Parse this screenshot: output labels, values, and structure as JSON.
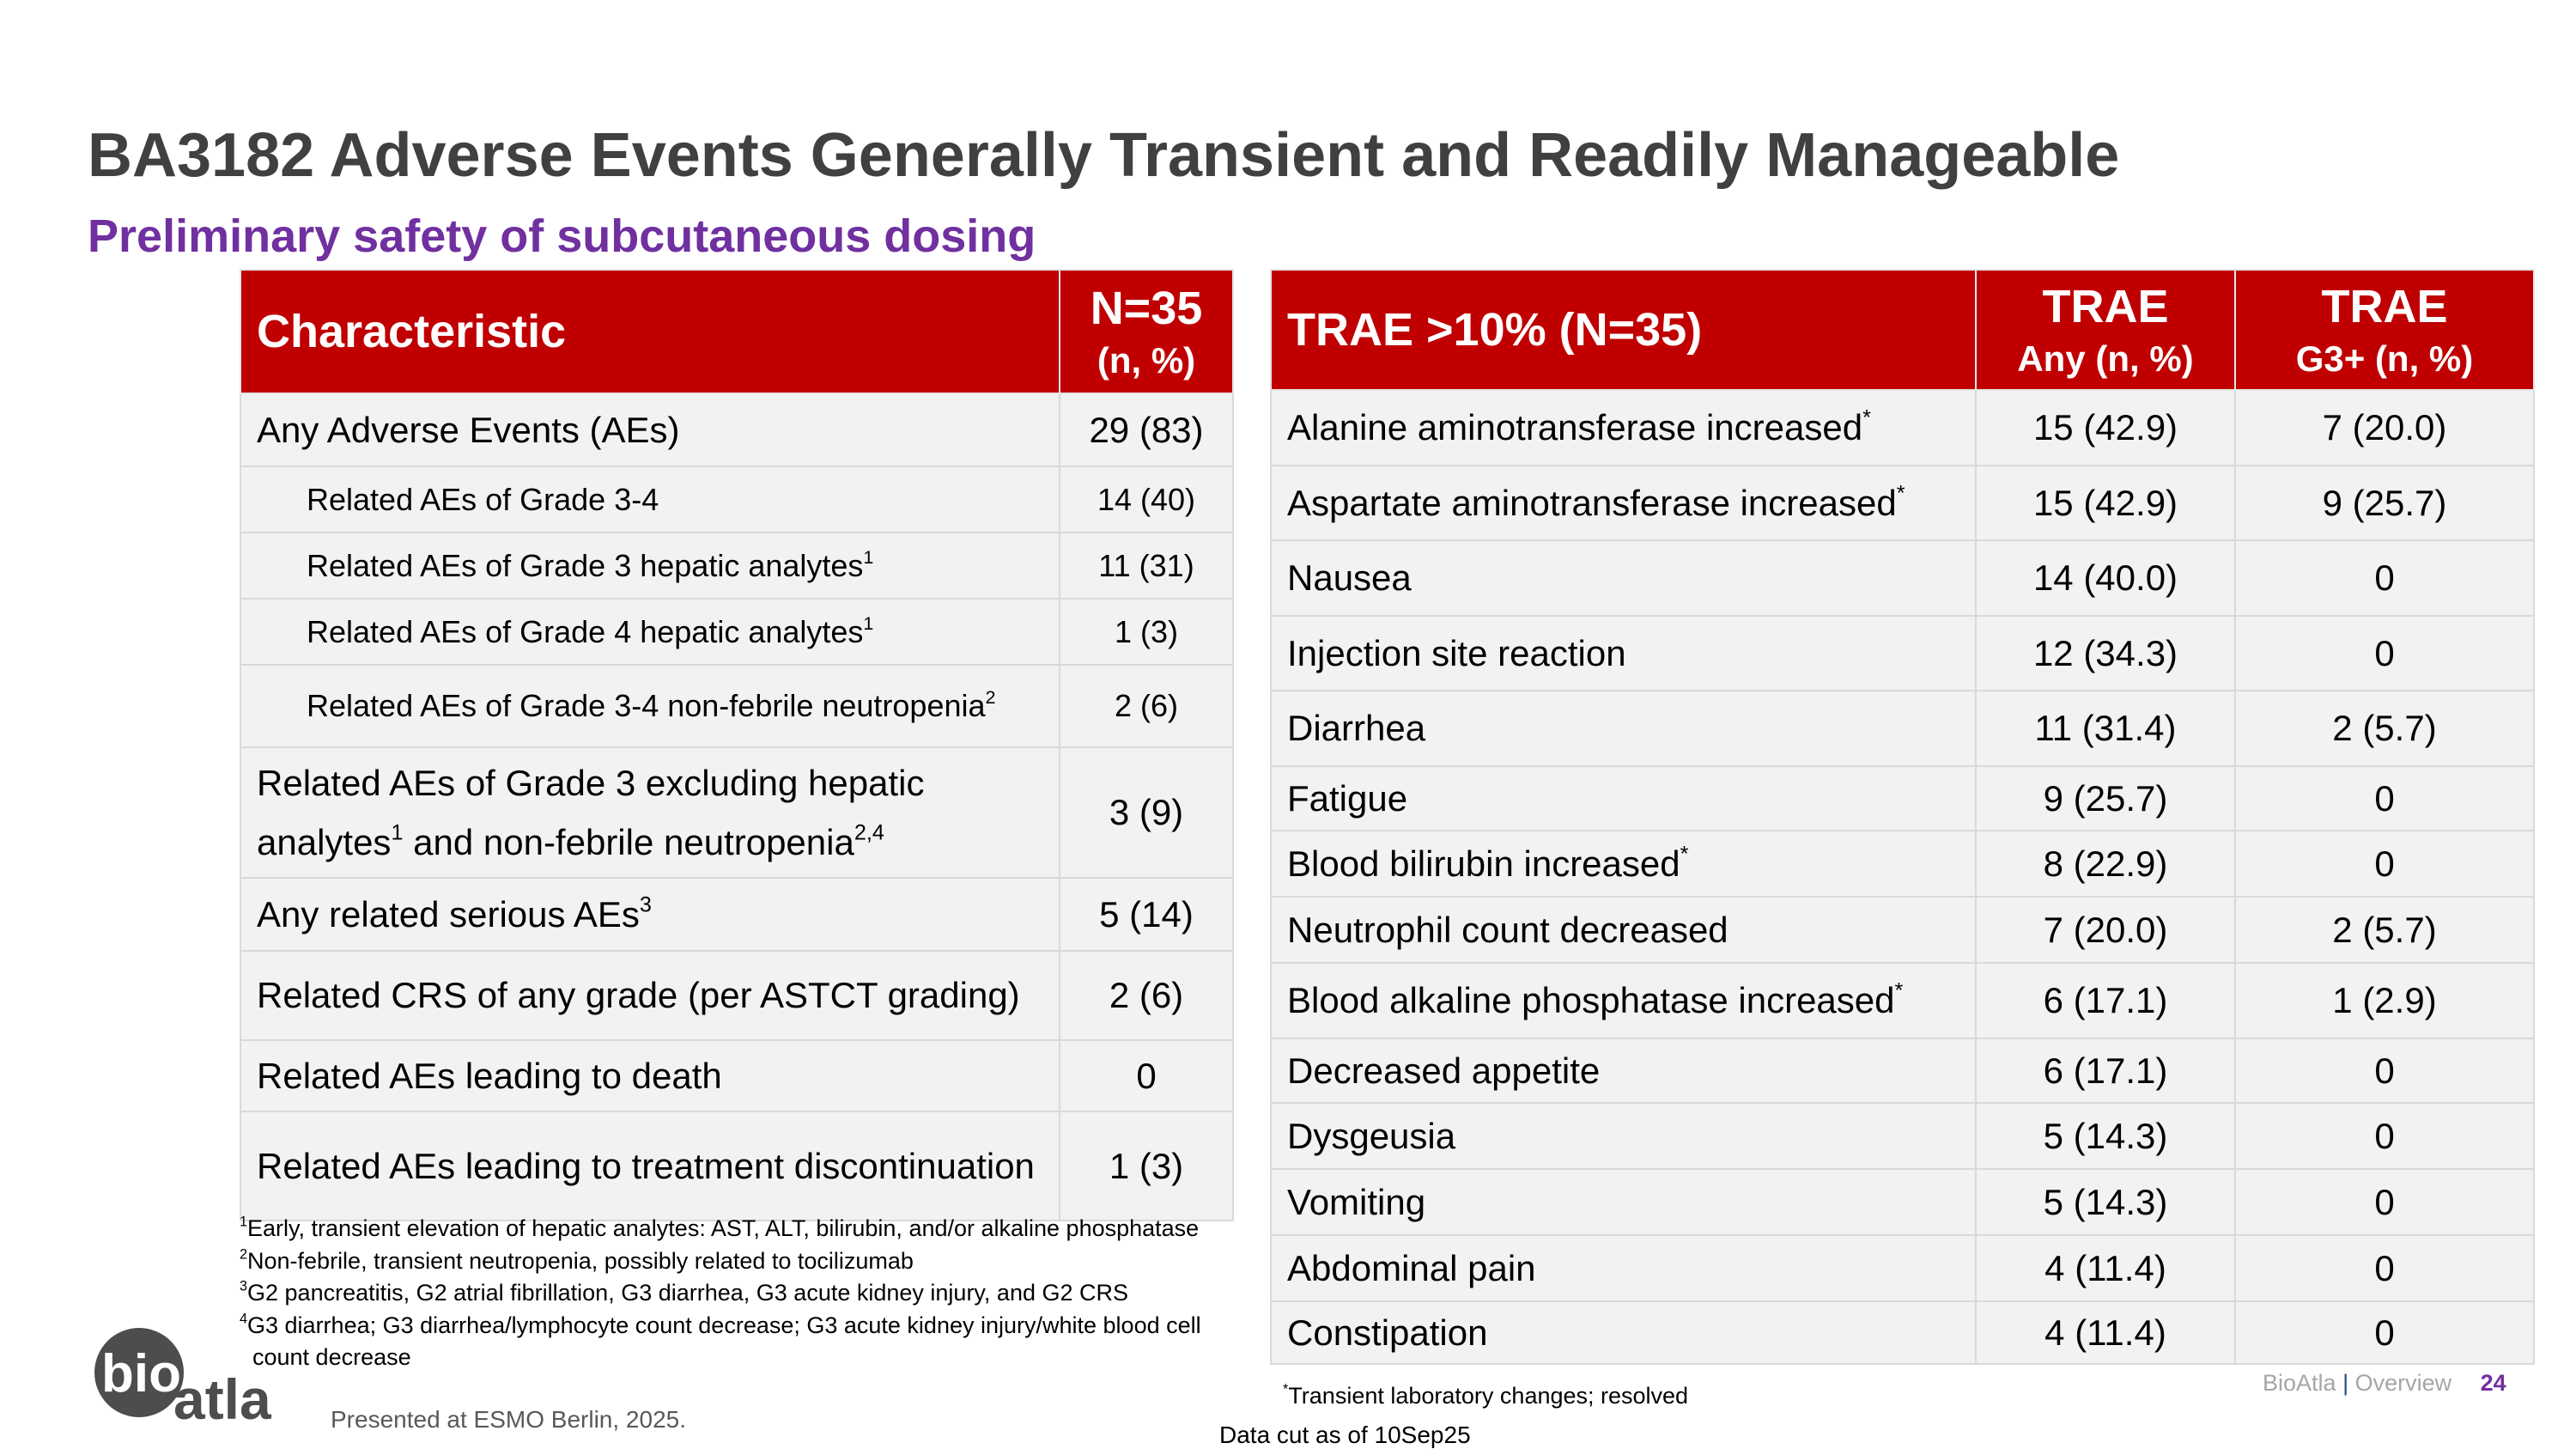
{
  "title": "BA3182 Adverse Events Generally Transient and Readily Manageable",
  "subtitle": "Preliminary safety of subcutaneous dosing",
  "colors": {
    "header_red": "#c00000",
    "accent_purple": "#7030a0",
    "title_gray": "#404040",
    "row_bg": "#f2f2f2"
  },
  "left_table": {
    "header": {
      "col1": "Characteristic",
      "col2_main": "N=35",
      "col2_sub": "(n, %)"
    },
    "rows": [
      {
        "label": "Any Adverse Events (AEs)",
        "value": "29 (83)",
        "indent": false
      },
      {
        "label": "Related AEs of Grade 3-4",
        "value": "14 (40)",
        "indent": true
      },
      {
        "label": "Related AEs of Grade 3 hepatic analytes",
        "sup": "1",
        "value": "11 (31)",
        "indent": true
      },
      {
        "label": "Related AEs of Grade 4 hepatic analytes",
        "sup": "1",
        "value": "1 (3)",
        "indent": true
      },
      {
        "label": "Related AEs of Grade 3-4 non-febrile neutropenia",
        "sup": "2",
        "value": "2 (6)",
        "indent": true
      },
      {
        "label": "Related AEs of Grade 3 excluding hepatic analytes",
        "sup": "1",
        "label2": " and non-febrile neutropenia",
        "sup2": "2,4",
        "value": "3 (9)",
        "indent": false
      },
      {
        "label": "Any related serious AEs",
        "sup": "3",
        "value": "5 (14)",
        "indent": false
      },
      {
        "label": "Related CRS of any grade (per ASTCT grading)",
        "value": "2 (6)",
        "indent": false
      },
      {
        "label": "Related AEs leading to death",
        "value": "0",
        "indent": false
      },
      {
        "label": "Related AEs leading to treatment discontinuation",
        "value": "1 (3)",
        "indent": false
      }
    ]
  },
  "right_table": {
    "header": {
      "col1": "TRAE >10% (N=35)",
      "col2_main": "TRAE",
      "col2_sub": "Any (n, %)",
      "col3_main": "TRAE",
      "col3_sub": "G3+ (n, %)"
    },
    "rows": [
      {
        "label": "Alanine aminotransferase increased",
        "sup": "*",
        "any": "15 (42.9)",
        "g3": "7 (20.0)"
      },
      {
        "label": "Aspartate aminotransferase increased",
        "sup": "*",
        "any": "15 (42.9)",
        "g3": "9 (25.7)"
      },
      {
        "label": "Nausea",
        "any": "14 (40.0)",
        "g3": "0"
      },
      {
        "label": "Injection site reaction",
        "any": "12 (34.3)",
        "g3": "0"
      },
      {
        "label": "Diarrhea",
        "any": "11 (31.4)",
        "g3": "2 (5.7)"
      },
      {
        "label": "Fatigue",
        "any": "9 (25.7)",
        "g3": "0"
      },
      {
        "label": "Blood bilirubin increased",
        "sup": "*",
        "any": "8 (22.9)",
        "g3": "0"
      },
      {
        "label": "Neutrophil count decreased",
        "any": "7 (20.0)",
        "g3": "2 (5.7)"
      },
      {
        "label": "Blood alkaline phosphatase increased",
        "sup": "*",
        "any": "6 (17.1)",
        "g3": "1 (2.9)"
      },
      {
        "label": "Decreased appetite",
        "any": "6 (17.1)",
        "g3": "0"
      },
      {
        "label": "Dysgeusia",
        "any": "5 (14.3)",
        "g3": "0"
      },
      {
        "label": "Vomiting",
        "any": "5 (14.3)",
        "g3": "0"
      },
      {
        "label": "Abdominal pain",
        "any": "4 (11.4)",
        "g3": "0"
      },
      {
        "label": "Constipation",
        "any": "4 (11.4)",
        "g3": "0"
      }
    ]
  },
  "footnotes": [
    {
      "sup": "1",
      "text": "Early, transient elevation of hepatic analytes: AST, ALT, bilirubin, and/or alkaline phosphatase"
    },
    {
      "sup": "2",
      "text": "Non-febrile, transient neutropenia, possibly related to tocilizumab"
    },
    {
      "sup": "3",
      "text": "G2 pancreatitis, G2 atrial fibrillation, G3 diarrhea, G3 acute kidney injury, and G2 CRS"
    },
    {
      "sup": "4",
      "text": "G3 diarrhea; G3 diarrhea/lymphocyte count decrease; G3 acute kidney injury/white blood cell",
      "cont": "count decrease"
    }
  ],
  "star_note": {
    "sup": "*",
    "text": "Transient laboratory changes; resolved"
  },
  "data_cut": "Data cut as of 10Sep25",
  "presented": "Presented at ESMO Berlin, 2025.",
  "footer": {
    "brand": "BioAtla",
    "separator": "|",
    "section": "Overview",
    "page": "24"
  },
  "logo": {
    "text1": "bio",
    "text2": "atla"
  }
}
